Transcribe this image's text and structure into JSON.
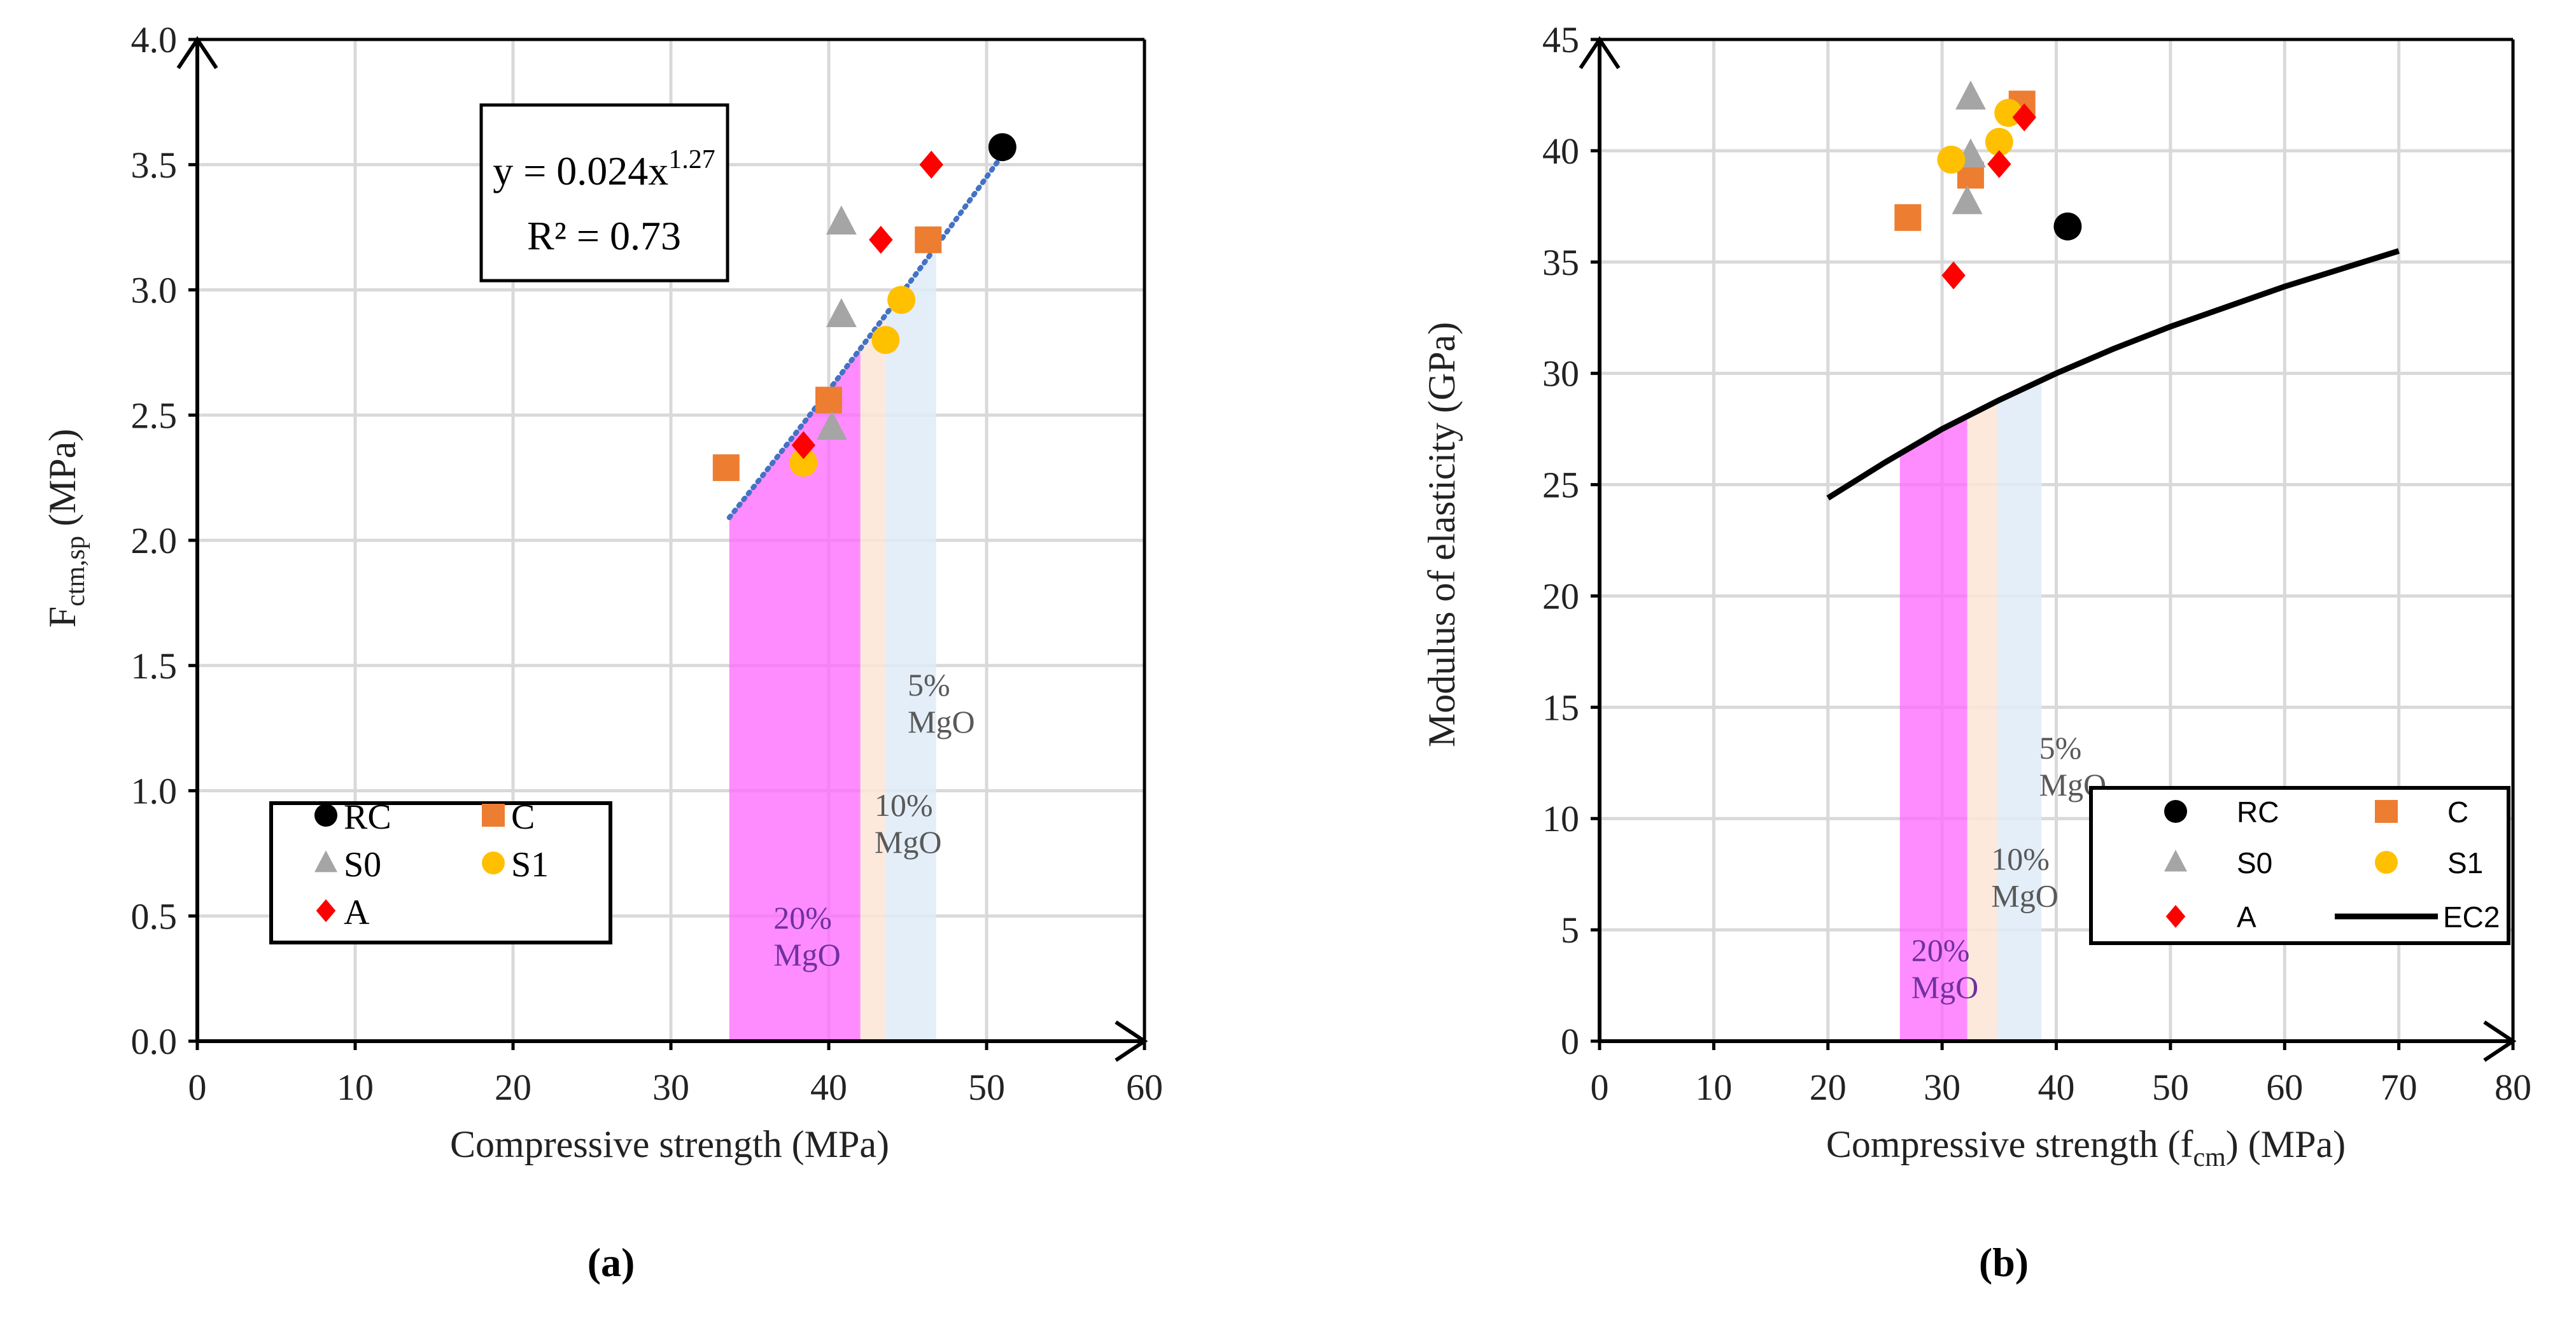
{
  "chart_data": [
    {
      "type": "scatter",
      "panel_label": "(a)",
      "xlabel": "Compressive strength  (MPa)",
      "ylabel_main": "F",
      "ylabel_sub": "ctm,sp",
      "ylabel_unit": " (MPa)",
      "xlim": [
        0,
        60
      ],
      "ylim": [
        0,
        4.0
      ],
      "xticks": [
        "0",
        "10",
        "20",
        "30",
        "40",
        "50",
        "60"
      ],
      "yticks": [
        "0.0",
        "0.5",
        "1.0",
        "1.5",
        "2.0",
        "2.5",
        "3.0",
        "3.5",
        "4.0"
      ],
      "grid": true,
      "legend_placement": "bottom-left",
      "series": [
        {
          "name": "RC",
          "marker": "circle",
          "color": "#000000",
          "points": [
            [
              51.0,
              3.57
            ]
          ]
        },
        {
          "name": "C",
          "marker": "square",
          "color": "#ED7D31",
          "points": [
            [
              33.5,
              2.29
            ],
            [
              40.0,
              2.56
            ],
            [
              46.3,
              3.2
            ]
          ]
        },
        {
          "name": "S0",
          "marker": "triangle",
          "color": "#A5A5A5",
          "points": [
            [
              40.8,
              3.27
            ],
            [
              40.8,
              2.9
            ],
            [
              40.2,
              2.45
            ]
          ]
        },
        {
          "name": "S1",
          "marker": "circle",
          "color": "#FFC000",
          "points": [
            [
              38.4,
              2.31
            ],
            [
              43.6,
              2.8
            ],
            [
              44.6,
              2.96
            ]
          ]
        },
        {
          "name": "A",
          "marker": "diamond",
          "color": "#FF0000",
          "points": [
            [
              38.4,
              2.38
            ],
            [
              43.3,
              3.2
            ],
            [
              46.5,
              3.5
            ]
          ]
        }
      ],
      "trendline": {
        "type": "power",
        "a": 0.024,
        "b": 1.27,
        "x_range": [
          33.7,
          51.0
        ],
        "color": "#4472C4",
        "equation_prefix": "y = 0.024x",
        "equation_exp": "1.27",
        "r2_text": "R² = 0.73"
      },
      "bands": [
        {
          "label_1": "20%",
          "label_2": "MgO",
          "x_range": [
            33.7,
            42.0
          ],
          "color": "#FF66FF",
          "label_x": 36.5,
          "label_y": 0.45
        },
        {
          "label_1": "10%",
          "label_2": "MgO",
          "x_range": [
            42.0,
            43.6
          ],
          "color": "#FBE5D6",
          "label_x": 42.9,
          "label_y": 0.9
        },
        {
          "label_1": "5%",
          "label_2": "MgO",
          "x_range": [
            43.6,
            46.8
          ],
          "color": "#DEEBF7",
          "label_x": 45.0,
          "label_y": 1.38
        }
      ]
    },
    {
      "type": "scatter",
      "panel_label": "(b)",
      "xlabel_main": "Compressive strength (f",
      "xlabel_sub": "cm",
      "xlabel_end": ") (MPa)",
      "ylabel": "Modulus of elasticity  (GPa)",
      "xlim": [
        0,
        80
      ],
      "ylim": [
        0,
        45
      ],
      "xticks": [
        "0",
        "10",
        "20",
        "30",
        "40",
        "50",
        "60",
        "70",
        "80"
      ],
      "yticks": [
        "0",
        "5",
        "10",
        "15",
        "20",
        "25",
        "30",
        "35",
        "40",
        "45"
      ],
      "grid": true,
      "legend_placement": "bottom-right",
      "series": [
        {
          "name": "RC",
          "marker": "circle",
          "color": "#000000",
          "points": [
            [
              41.0,
              36.6
            ]
          ]
        },
        {
          "name": "C",
          "marker": "square",
          "color": "#ED7D31",
          "points": [
            [
              27.0,
              37.0
            ],
            [
              32.5,
              38.9
            ],
            [
              37.0,
              42.1
            ]
          ]
        },
        {
          "name": "S0",
          "marker": "triangle",
          "color": "#A5A5A5",
          "points": [
            [
              32.5,
              42.4
            ],
            [
              32.5,
              39.8
            ],
            [
              32.2,
              37.7
            ]
          ]
        },
        {
          "name": "S1",
          "marker": "circle",
          "color": "#FFC000",
          "points": [
            [
              30.8,
              39.6
            ],
            [
              35.0,
              40.4
            ],
            [
              35.8,
              41.7
            ]
          ]
        },
        {
          "name": "A",
          "marker": "diamond",
          "color": "#FF0000",
          "points": [
            [
              31.0,
              34.4
            ],
            [
              35.0,
              39.4
            ],
            [
              37.2,
              41.5
            ]
          ]
        }
      ],
      "line_series": {
        "name": "EC2",
        "color": "#000000",
        "points": [
          [
            20,
            24.4
          ],
          [
            25,
            26.0
          ],
          [
            30,
            27.5
          ],
          [
            35,
            28.8
          ],
          [
            40,
            30.0
          ],
          [
            45,
            31.1
          ],
          [
            50,
            32.1
          ],
          [
            55,
            33.0
          ],
          [
            60,
            33.9
          ],
          [
            65,
            34.7
          ],
          [
            70,
            35.5
          ]
        ]
      },
      "bands": [
        {
          "label_1": "20%",
          "label_2": "MgO",
          "x_range": [
            26.3,
            32.2
          ],
          "color": "#FF66FF",
          "label_x": 27.3,
          "label_y": 3.6
        },
        {
          "label_1": "10%",
          "label_2": "MgO",
          "x_range": [
            32.2,
            34.8
          ],
          "color": "#FBE5D6",
          "label_x": 34.3,
          "label_y": 7.7
        },
        {
          "label_1": "5%",
          "label_2": "MgO",
          "x_range": [
            34.8,
            38.7
          ],
          "color": "#DEEBF7",
          "label_x": 38.5,
          "label_y": 12.7
        }
      ]
    }
  ]
}
